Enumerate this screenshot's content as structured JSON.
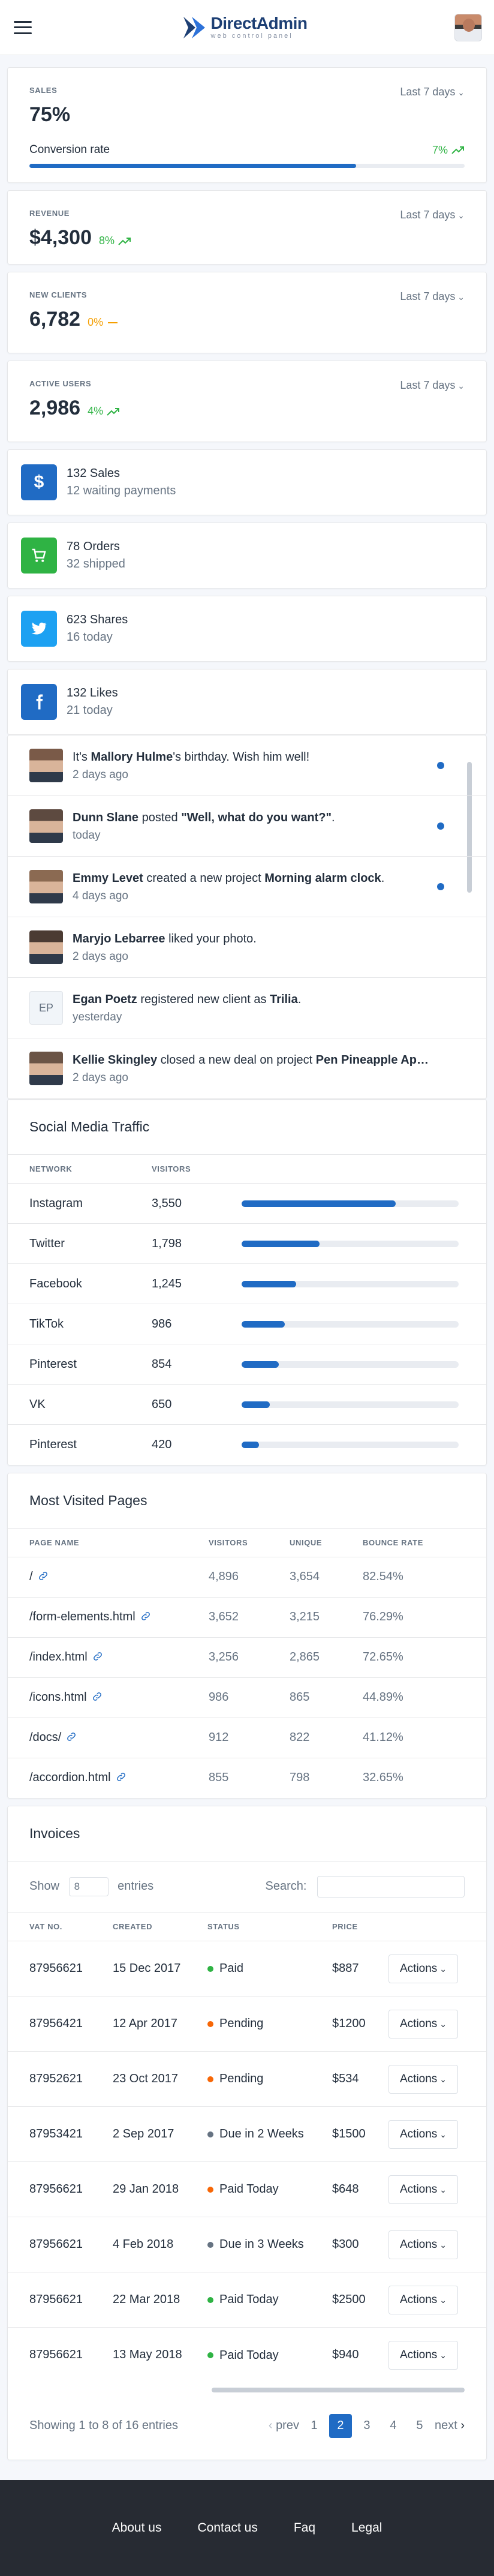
{
  "header": {
    "brand": "DirectAdmin",
    "tagline": "web control panel"
  },
  "metrics": {
    "sales": {
      "label": "SALES",
      "period": "Last 7 days",
      "value": "75%",
      "conversion_label": "Conversion rate",
      "conversion_pct": "7%",
      "conversion_progress": 0.75
    },
    "revenue": {
      "label": "REVENUE",
      "period": "Last 7 days",
      "value": "$4,300",
      "trend": "8%"
    },
    "new_clients": {
      "label": "NEW CLIENTS",
      "period": "Last 7 days",
      "value": "6,782",
      "trend": "0%"
    },
    "active_users": {
      "label": "ACTIVE USERS",
      "period": "Last 7 days",
      "value": "2,986",
      "trend": "4%"
    }
  },
  "stats": [
    {
      "icon": "dollar-icon",
      "color": "#206bc4",
      "title": "132 Sales",
      "sub": "12 waiting payments"
    },
    {
      "icon": "cart-icon",
      "color": "#2fb344",
      "title": "78 Orders",
      "sub": "32 shipped"
    },
    {
      "icon": "twitter-icon",
      "color": "#1da1f2",
      "title": "623 Shares",
      "sub": "16 today"
    },
    {
      "icon": "facebook-icon",
      "color": "#3b5998",
      "title": "132 Likes",
      "sub": "21 today"
    }
  ],
  "feed": [
    {
      "pre": "It's ",
      "name": "Mallory Hulme",
      "mid": "'s birthday. Wish him well!",
      "obj": "",
      "post": "",
      "time": "2 days ago",
      "unread": true
    },
    {
      "pre": "",
      "name": "Dunn Slane",
      "mid": " posted ",
      "obj": "\"Well, what do you want?\"",
      "post": ".",
      "time": "today",
      "unread": true
    },
    {
      "pre": "",
      "name": "Emmy Levet",
      "mid": " created a new project ",
      "obj": "Morning alarm clock",
      "post": ".",
      "time": "4 days ago",
      "unread": true
    },
    {
      "pre": "",
      "name": "Maryjo Lebarree",
      "mid": " liked your photo.",
      "obj": "",
      "post": "",
      "time": "2 days ago",
      "unread": false
    },
    {
      "pre": "",
      "name": "Egan Poetz",
      "mid": " registered new client as ",
      "obj": "Trilia",
      "post": ".",
      "time": "yesterday",
      "unread": false,
      "initials": "EP"
    },
    {
      "pre": "",
      "name": "Kellie Skingley",
      "mid": " closed a new deal on project ",
      "obj": "Pen Pineapple Ap…",
      "post": "",
      "time": "2 days ago",
      "unread": false
    }
  ],
  "social": {
    "title": "Social Media Traffic",
    "headers": [
      "NETWORK",
      "VISITORS"
    ],
    "rows": [
      {
        "network": "Instagram",
        "visitors": "3,550",
        "pct": 0.71
      },
      {
        "network": "Twitter",
        "visitors": "1,798",
        "pct": 0.36
      },
      {
        "network": "Facebook",
        "visitors": "1,245",
        "pct": 0.25
      },
      {
        "network": "TikTok",
        "visitors": "986",
        "pct": 0.2
      },
      {
        "network": "Pinterest",
        "visitors": "854",
        "pct": 0.17
      },
      {
        "network": "VK",
        "visitors": "650",
        "pct": 0.13
      },
      {
        "network": "Pinterest",
        "visitors": "420",
        "pct": 0.08
      }
    ]
  },
  "pages": {
    "title": "Most Visited Pages",
    "headers": [
      "PAGE NAME",
      "VISITORS",
      "UNIQUE",
      "BOUNCE RATE"
    ],
    "rows": [
      {
        "name": "/",
        "visitors": "4,896",
        "unique": "3,654",
        "bounce": "82.54%"
      },
      {
        "name": "/form-elements.html",
        "visitors": "3,652",
        "unique": "3,215",
        "bounce": "76.29%"
      },
      {
        "name": "/index.html",
        "visitors": "3,256",
        "unique": "2,865",
        "bounce": "72.65%"
      },
      {
        "name": "/icons.html",
        "visitors": "986",
        "unique": "865",
        "bounce": "44.89%"
      },
      {
        "name": "/docs/",
        "visitors": "912",
        "unique": "822",
        "bounce": "41.12%"
      },
      {
        "name": "/accordion.html",
        "visitors": "855",
        "unique": "798",
        "bounce": "32.65%"
      }
    ]
  },
  "invoices": {
    "title": "Invoices",
    "show_label": "Show",
    "entries_value": "8",
    "entries_label": "entries",
    "search_label": "Search:",
    "headers": [
      "VAT NO.",
      "CREATED",
      "STATUS",
      "PRICE"
    ],
    "action_label": "Actions",
    "rows": [
      {
        "vat": "87956621",
        "created": "15 Dec 2017",
        "status": "Paid",
        "color": "#2fb344",
        "price": "$887"
      },
      {
        "vat": "87956421",
        "created": "12 Apr 2017",
        "status": "Pending",
        "color": "#f76707",
        "price": "$1200"
      },
      {
        "vat": "87952621",
        "created": "23 Oct 2017",
        "status": "Pending",
        "color": "#f76707",
        "price": "$534"
      },
      {
        "vat": "87953421",
        "created": "2 Sep 2017",
        "status": "Due in 2 Weeks",
        "color": "#667382",
        "price": "$1500"
      },
      {
        "vat": "87956621",
        "created": "29 Jan 2018",
        "status": "Paid Today",
        "color": "#f76707",
        "price": "$648"
      },
      {
        "vat": "87956621",
        "created": "4 Feb 2018",
        "status": "Due in 3 Weeks",
        "color": "#667382",
        "price": "$300"
      },
      {
        "vat": "87956621",
        "created": "22 Mar 2018",
        "status": "Paid Today",
        "color": "#2fb344",
        "price": "$2500"
      },
      {
        "vat": "87956621",
        "created": "13 May 2018",
        "status": "Paid Today",
        "color": "#2fb344",
        "price": "$940"
      }
    ],
    "summary": "Showing 1 to 8 of 16 entries",
    "pager": {
      "prev": "prev",
      "pages": [
        "1",
        "2",
        "3",
        "4",
        "5"
      ],
      "active": "2",
      "next": "next"
    }
  },
  "footer": {
    "links": [
      "About us",
      "Contact us",
      "Faq",
      "Legal"
    ]
  }
}
